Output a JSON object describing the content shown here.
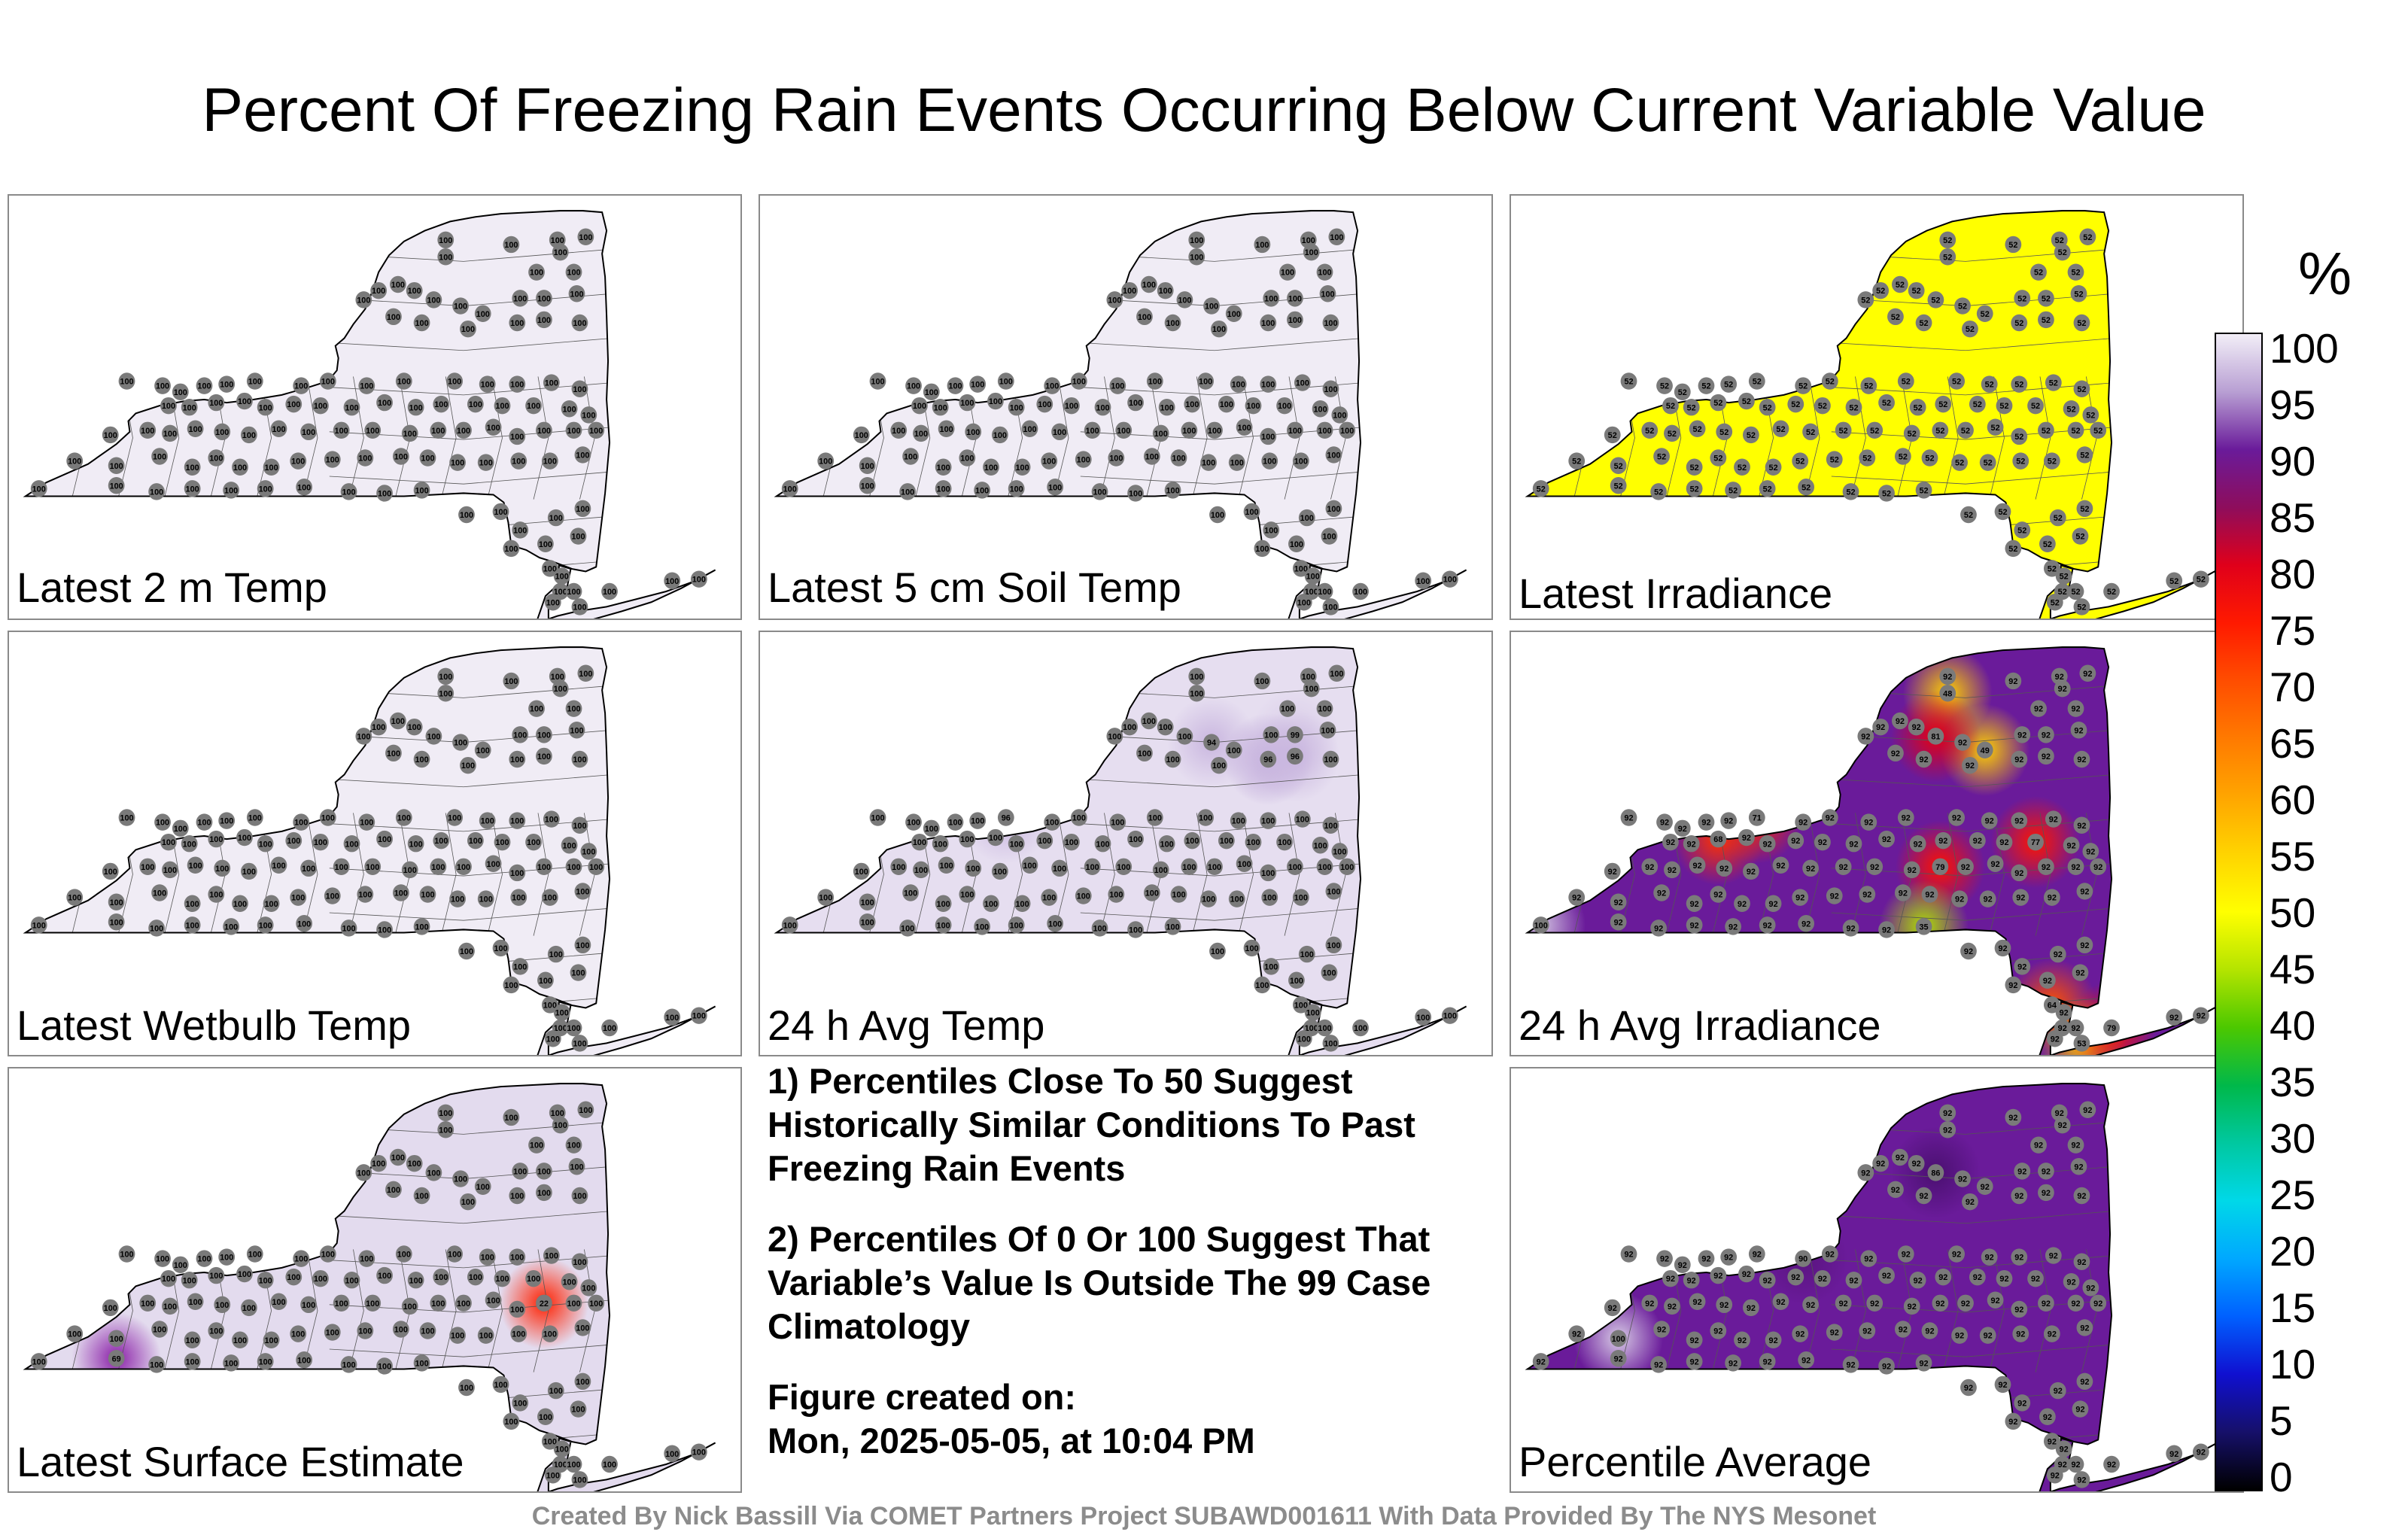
{
  "title": "Percent Of Freezing Rain Events Occurring Below Current Variable Value",
  "panels": [
    {
      "label": "Latest 2 m Temp",
      "fill": "#f0ecf5",
      "default_value": "100",
      "labels_position": "bottom",
      "hotspots": []
    },
    {
      "label": "Latest 5 cm Soil Temp",
      "fill": "#f0ecf5",
      "default_value": "100",
      "labels_position": "bottom",
      "hotspots": []
    },
    {
      "label": "Latest Irradiance",
      "fill": "#ffff00",
      "default_value": "52",
      "labels_position": "bottom",
      "hotspots": []
    },
    {
      "label": "Latest Wetbulb Temp",
      "fill": "#f0ecf5",
      "default_value": "100",
      "labels_position": "bottom",
      "hotspots": []
    },
    {
      "label": "24 h Avg Temp",
      "fill": "#e6def0",
      "default_value": "100",
      "labels_position": "bottom",
      "hotspots": [
        {
          "value": "96",
          "color": "#c9b6df"
        },
        {
          "value": "94",
          "color": "#c9b6df"
        },
        {
          "value": "96",
          "color": "#c9b6df"
        },
        {
          "value": "99",
          "color": "#d9cce8"
        },
        {
          "value": "96",
          "color": "#c9b6df"
        },
        {
          "value": "96",
          "color": "#c9b6df"
        }
      ]
    },
    {
      "label": "24 h Avg Irradiance",
      "fill": "#6a1b9a",
      "default_value": "92",
      "labels_position": "bottom",
      "hotspots": [
        {
          "value": "48",
          "color": "#ffd000"
        },
        {
          "value": "49",
          "color": "#ffd000"
        },
        {
          "value": "68",
          "color": "#ff3000"
        },
        {
          "value": "77",
          "color": "#ff1500"
        },
        {
          "value": "71",
          "color": "#ff2a00"
        },
        {
          "value": "81",
          "color": "#e60010"
        },
        {
          "value": "79",
          "color": "#ff1000"
        },
        {
          "value": "35",
          "color": "#b0e000"
        },
        {
          "value": "64",
          "color": "#ff5000"
        },
        {
          "value": "53",
          "color": "#ffc000"
        },
        {
          "value": "79",
          "color": "#ff1000"
        },
        {
          "value": "100",
          "color": "#d0c0e0"
        }
      ]
    },
    {
      "label": "Latest Surface Estimate",
      "fill": "#e3dbee",
      "default_value": "100",
      "labels_position": "bottom",
      "hotspots": [
        {
          "value": "22",
          "color": "#ff2000"
        },
        {
          "value": "69",
          "color": "#8a1fa8"
        }
      ]
    },
    {
      "label": "Percentile Average",
      "fill": "#6a1b9a",
      "default_value": "92",
      "labels_position": "bottom",
      "hotspots": [
        {
          "value": "100",
          "color": "#d8cbe6"
        },
        {
          "value": "86",
          "color": "#4a1070"
        },
        {
          "value": "90",
          "color": "#5a147f"
        }
      ]
    }
  ],
  "notes": [
    "1) Percentiles Close To 50 Suggest Historically Similar Conditions To Past Freezing Rain Events",
    "2) Percentiles Of 0 Or 100 Suggest That Variable’s Value Is Outside The 99 Case Climatology",
    "Figure created on:",
    "Mon, 2025-05-05, at 10:04 PM"
  ],
  "colorbar": {
    "unit": "%",
    "ticks": [
      "100",
      "95",
      "90",
      "85",
      "80",
      "75",
      "70",
      "65",
      "60",
      "55",
      "50",
      "45",
      "40",
      "35",
      "30",
      "25",
      "20",
      "15",
      "10",
      "5",
      "0"
    ],
    "stops": [
      {
        "value": 100,
        "color": "#f2eef7"
      },
      {
        "value": 95,
        "color": "#b89fd3"
      },
      {
        "value": 90,
        "color": "#6a1b9a"
      },
      {
        "value": 85,
        "color": "#8e0d5c"
      },
      {
        "value": 80,
        "color": "#e0001a"
      },
      {
        "value": 75,
        "color": "#ff1a00"
      },
      {
        "value": 70,
        "color": "#ff4d00"
      },
      {
        "value": 65,
        "color": "#ff7a00"
      },
      {
        "value": 60,
        "color": "#ffa500"
      },
      {
        "value": 55,
        "color": "#ffd400"
      },
      {
        "value": 50,
        "color": "#ffff00"
      },
      {
        "value": 45,
        "color": "#b4e400"
      },
      {
        "value": 40,
        "color": "#4cc800"
      },
      {
        "value": 35,
        "color": "#00b84a"
      },
      {
        "value": 30,
        "color": "#00c8a0"
      },
      {
        "value": 25,
        "color": "#00d8e8"
      },
      {
        "value": 20,
        "color": "#00a8ff"
      },
      {
        "value": 15,
        "color": "#0060ff"
      },
      {
        "value": 10,
        "color": "#1010d0"
      },
      {
        "value": 5,
        "color": "#16106a"
      },
      {
        "value": 0,
        "color": "#000000"
      }
    ]
  },
  "footer": "Created By Nick Bassill Via COMET Partners Project SUBAWD001611 With Data Provided By The NYS Mesonet"
}
